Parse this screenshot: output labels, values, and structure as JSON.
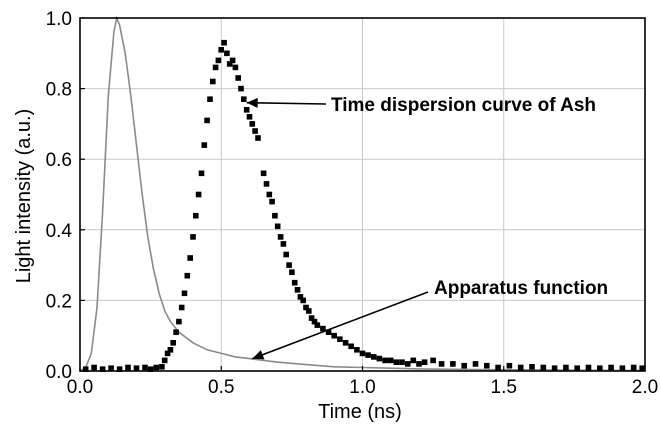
{
  "chart_data": {
    "type": "scatter",
    "title": "",
    "xlabel": "Time (ns)",
    "ylabel": "Light intensity  (a.u.)",
    "xlim": [
      0,
      2.0
    ],
    "ylim": [
      0,
      1.0
    ],
    "x_ticks": [
      "0.0",
      "0.5",
      "1.0",
      "1.5",
      "2.0"
    ],
    "y_ticks": [
      "0.0",
      "0.2",
      "0.4",
      "0.6",
      "0.8",
      "1.0"
    ],
    "grid": true,
    "colors": {
      "scatter": "#000000",
      "line": "#8a8a8a",
      "grid": "#c8c8c8"
    },
    "series": [
      {
        "kind": "scatter",
        "points": [
          [
            0.02,
            0.005
          ],
          [
            0.05,
            0.01
          ],
          [
            0.08,
            0.005
          ],
          [
            0.11,
            0.008
          ],
          [
            0.14,
            0.005
          ],
          [
            0.17,
            0.01
          ],
          [
            0.2,
            0.008
          ],
          [
            0.23,
            0.01
          ],
          [
            0.25,
            0.005
          ],
          [
            0.27,
            0.01
          ],
          [
            0.29,
            0.012
          ],
          [
            0.3,
            0.03
          ],
          [
            0.31,
            0.05
          ],
          [
            0.32,
            0.06
          ],
          [
            0.33,
            0.08
          ],
          [
            0.34,
            0.11
          ],
          [
            0.35,
            0.14
          ],
          [
            0.36,
            0.18
          ],
          [
            0.37,
            0.22
          ],
          [
            0.38,
            0.27
          ],
          [
            0.39,
            0.32
          ],
          [
            0.4,
            0.38
          ],
          [
            0.41,
            0.44
          ],
          [
            0.42,
            0.5
          ],
          [
            0.43,
            0.56
          ],
          [
            0.44,
            0.64
          ],
          [
            0.45,
            0.71
          ],
          [
            0.46,
            0.77
          ],
          [
            0.47,
            0.82
          ],
          [
            0.48,
            0.86
          ],
          [
            0.49,
            0.88
          ],
          [
            0.5,
            0.91
          ],
          [
            0.51,
            0.93
          ],
          [
            0.52,
            0.9
          ],
          [
            0.53,
            0.87
          ],
          [
            0.54,
            0.88
          ],
          [
            0.55,
            0.86
          ],
          [
            0.56,
            0.83
          ],
          [
            0.57,
            0.8
          ],
          [
            0.58,
            0.77
          ],
          [
            0.59,
            0.74
          ],
          [
            0.6,
            0.72
          ],
          [
            0.61,
            0.7
          ],
          [
            0.62,
            0.68
          ],
          [
            0.63,
            0.66
          ],
          [
            0.65,
            0.56
          ],
          [
            0.66,
            0.53
          ],
          [
            0.67,
            0.5
          ],
          [
            0.68,
            0.48
          ],
          [
            0.69,
            0.44
          ],
          [
            0.7,
            0.41
          ],
          [
            0.71,
            0.38
          ],
          [
            0.72,
            0.36
          ],
          [
            0.73,
            0.33
          ],
          [
            0.74,
            0.3
          ],
          [
            0.75,
            0.28
          ],
          [
            0.76,
            0.25
          ],
          [
            0.77,
            0.23
          ],
          [
            0.78,
            0.21
          ],
          [
            0.79,
            0.2
          ],
          [
            0.8,
            0.18
          ],
          [
            0.81,
            0.17
          ],
          [
            0.82,
            0.15
          ],
          [
            0.83,
            0.14
          ],
          [
            0.84,
            0.13
          ],
          [
            0.86,
            0.12
          ],
          [
            0.88,
            0.11
          ],
          [
            0.9,
            0.1
          ],
          [
            0.92,
            0.09
          ],
          [
            0.94,
            0.08
          ],
          [
            0.96,
            0.07
          ],
          [
            0.98,
            0.06
          ],
          [
            1.0,
            0.05
          ],
          [
            1.02,
            0.045
          ],
          [
            1.04,
            0.04
          ],
          [
            1.06,
            0.035
          ],
          [
            1.08,
            0.03
          ],
          [
            1.1,
            0.03
          ],
          [
            1.12,
            0.025
          ],
          [
            1.14,
            0.025
          ],
          [
            1.16,
            0.02
          ],
          [
            1.18,
            0.03
          ],
          [
            1.2,
            0.02
          ],
          [
            1.22,
            0.025
          ],
          [
            1.25,
            0.03
          ],
          [
            1.28,
            0.02
          ],
          [
            1.32,
            0.02
          ],
          [
            1.36,
            0.015
          ],
          [
            1.4,
            0.02
          ],
          [
            1.44,
            0.015
          ],
          [
            1.48,
            0.01
          ],
          [
            1.52,
            0.015
          ],
          [
            1.56,
            0.01
          ],
          [
            1.6,
            0.012
          ],
          [
            1.64,
            0.01
          ],
          [
            1.68,
            0.008
          ],
          [
            1.72,
            0.01
          ],
          [
            1.76,
            0.008
          ],
          [
            1.8,
            0.01
          ],
          [
            1.84,
            0.008
          ],
          [
            1.88,
            0.01
          ],
          [
            1.92,
            0.008
          ],
          [
            1.96,
            0.01
          ],
          [
            1.99,
            0.008
          ]
        ]
      },
      {
        "kind": "line",
        "points": [
          [
            0.0,
            0.0
          ],
          [
            0.02,
            0.01
          ],
          [
            0.04,
            0.05
          ],
          [
            0.06,
            0.18
          ],
          [
            0.08,
            0.45
          ],
          [
            0.1,
            0.78
          ],
          [
            0.12,
            0.96
          ],
          [
            0.13,
            1.0
          ],
          [
            0.14,
            0.98
          ],
          [
            0.16,
            0.9
          ],
          [
            0.18,
            0.78
          ],
          [
            0.2,
            0.64
          ],
          [
            0.22,
            0.5
          ],
          [
            0.24,
            0.38
          ],
          [
            0.26,
            0.29
          ],
          [
            0.28,
            0.22
          ],
          [
            0.3,
            0.17
          ],
          [
            0.32,
            0.14
          ],
          [
            0.35,
            0.11
          ],
          [
            0.4,
            0.08
          ],
          [
            0.45,
            0.06
          ],
          [
            0.5,
            0.05
          ],
          [
            0.55,
            0.04
          ],
          [
            0.6,
            0.035
          ],
          [
            0.7,
            0.025
          ],
          [
            0.8,
            0.018
          ],
          [
            0.9,
            0.012
          ],
          [
            1.0,
            0.01
          ],
          [
            1.2,
            0.006
          ],
          [
            1.4,
            0.004
          ],
          [
            1.6,
            0.003
          ],
          [
            1.8,
            0.002
          ],
          [
            2.0,
            0.001
          ]
        ]
      }
    ],
    "annotations": [
      {
        "text": "Time dispersion curve of Ash",
        "arrow_to": [
          0.59,
          0.76
        ]
      },
      {
        "text": "Apparatus function",
        "arrow_to": [
          0.61,
          0.035
        ]
      }
    ]
  }
}
